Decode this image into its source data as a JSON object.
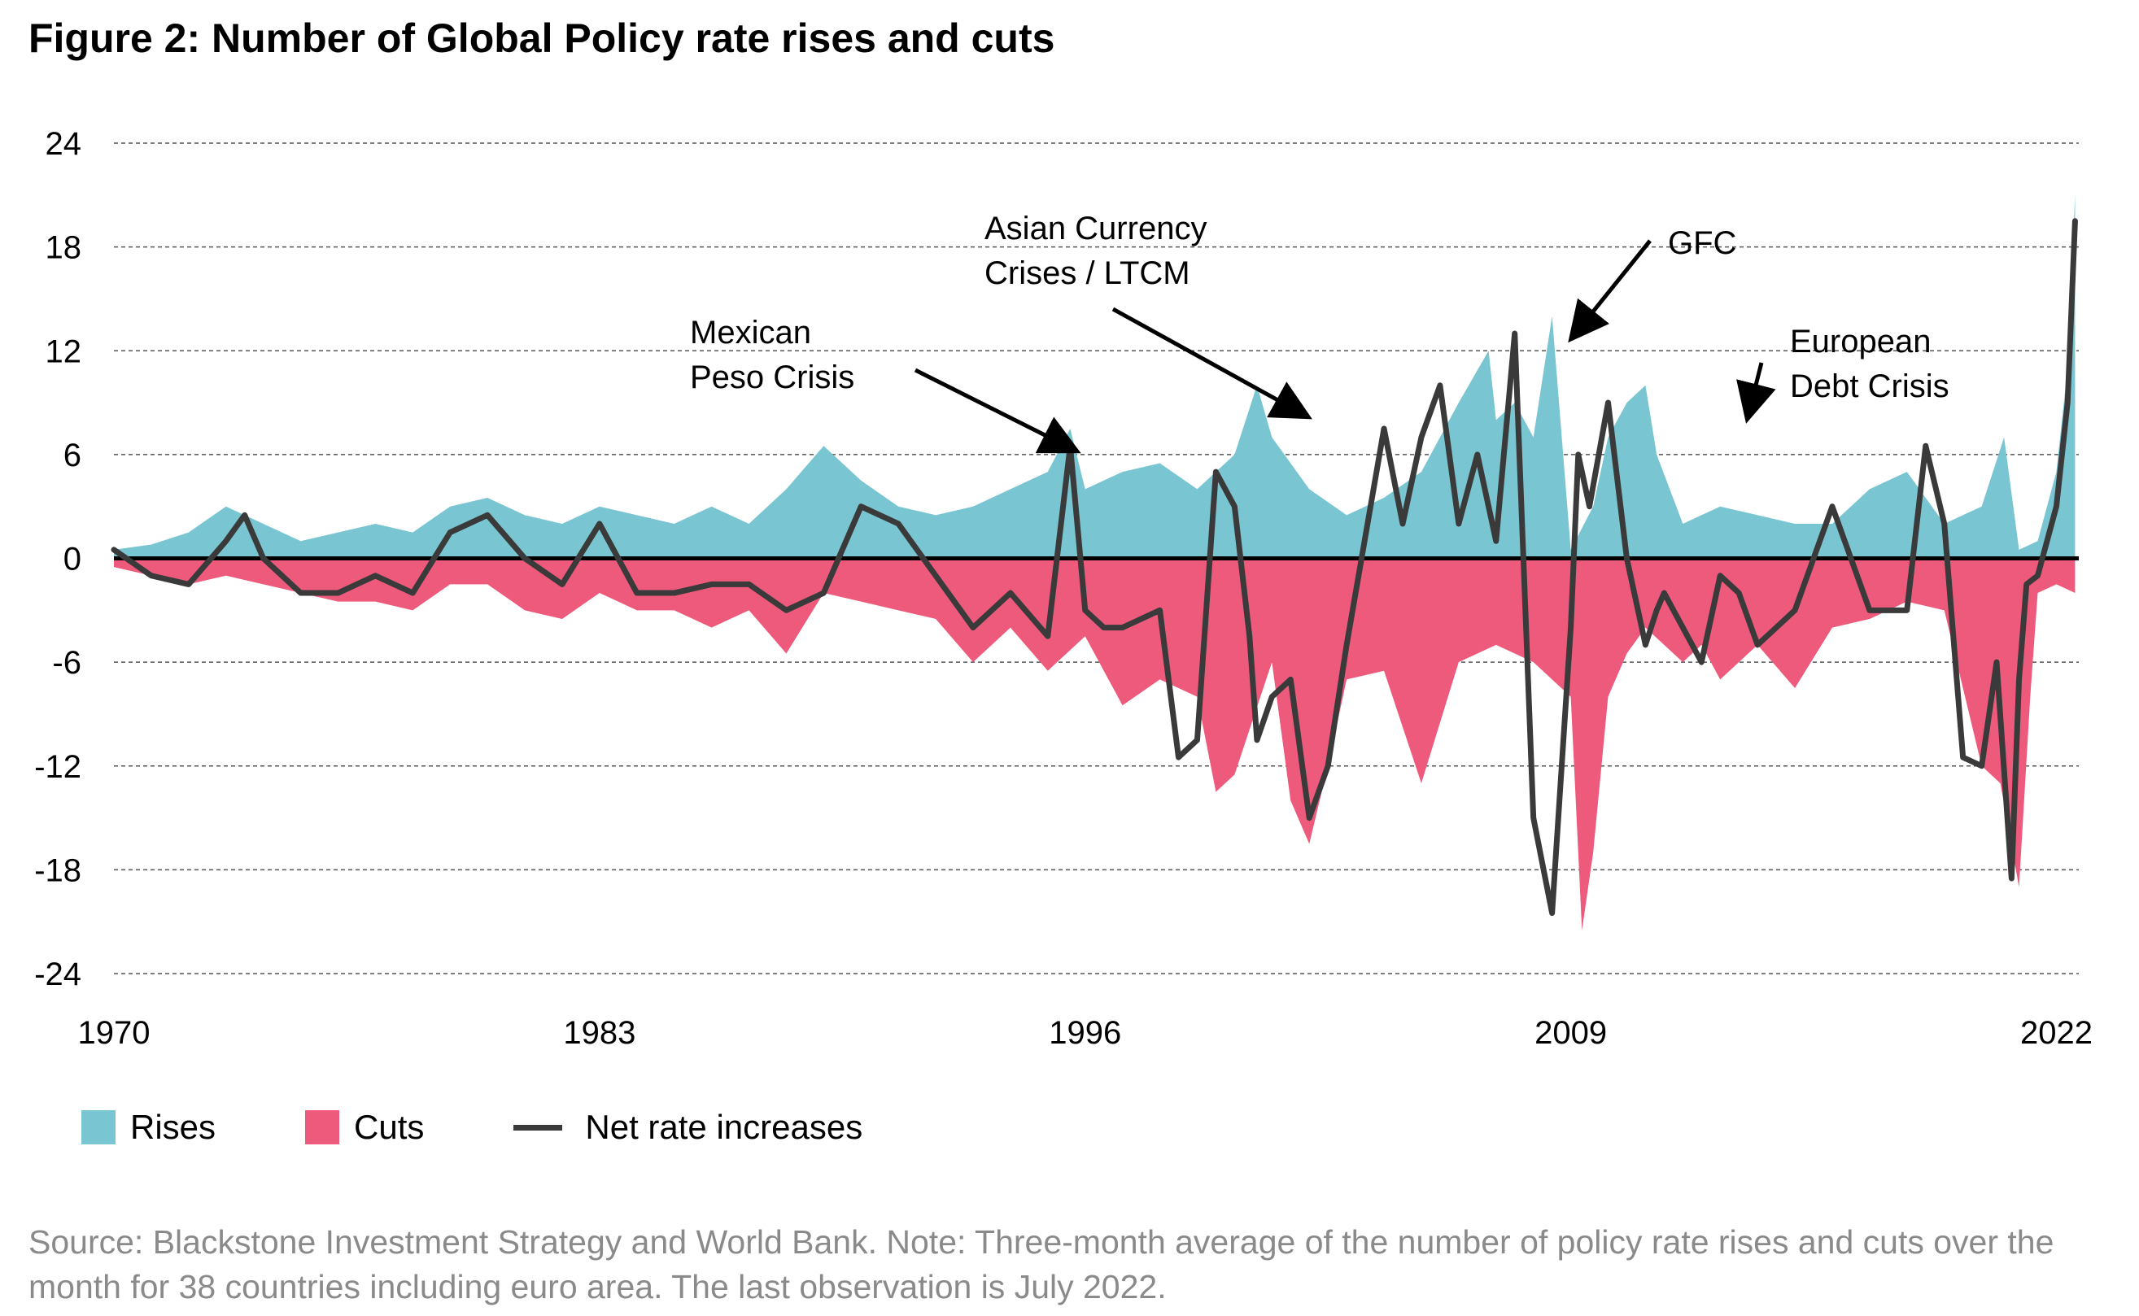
{
  "title": "Figure 2: Number of Global Policy rate rises and cuts",
  "colors": {
    "rises": "#79C5D1",
    "cuts": "#EE5A7C",
    "net": "#3a3a3a"
  },
  "legend": [
    {
      "label": "Rises",
      "kind": "area",
      "color": "#79C5D1"
    },
    {
      "label": "Cuts",
      "kind": "area",
      "color": "#EE5A7C"
    },
    {
      "label": "Net rate increases",
      "kind": "line",
      "color": "#3a3a3a"
    }
  ],
  "source": "Source: Blackstone Investment Strategy and World Bank. Note: Three-month average of the number of policy rate rises and cuts over the month for 38 countries including euro area. The last observation is July 2022.",
  "chart_data": {
    "type": "area",
    "title": "Figure 2: Number of Global Policy rate rises and cuts",
    "xlabel": "",
    "ylabel": "",
    "xlim": [
      1970,
      2022.6
    ],
    "ylim": [
      -24,
      24
    ],
    "x_ticks": [
      1970,
      1983,
      1996,
      2009,
      2022
    ],
    "y_ticks": [
      24,
      18,
      12,
      6,
      0,
      -6,
      -12,
      -18,
      -24
    ],
    "grid": "horizontal dashed",
    "legend_position": "bottom-left",
    "series": [
      {
        "name": "Rises",
        "x": [
          1970,
          1971,
          1972,
          1973,
          1974,
          1975,
          1976,
          1977,
          1978,
          1979,
          1980,
          1981,
          1982,
          1983,
          1984,
          1985,
          1986,
          1987,
          1988,
          1989,
          1990,
          1991,
          1992,
          1993,
          1994,
          1995,
          1995.6,
          1996,
          1997,
          1998,
          1999,
          2000,
          2000.6,
          2001,
          2002,
          2003,
          2004,
          2005,
          2006,
          2006.8,
          2007,
          2007.5,
          2008,
          2008.5,
          2009,
          2009.6,
          2010,
          2010.5,
          2011,
          2011.3,
          2012,
          2013,
          2014,
          2015,
          2016,
          2017,
          2018,
          2019,
          2020,
          2020.6,
          2021,
          2021.5,
          2022,
          2022.3,
          2022.5
        ],
        "values": [
          0.5,
          0.8,
          1.5,
          3.0,
          2.0,
          1.0,
          1.5,
          2.0,
          1.5,
          3.0,
          3.5,
          2.5,
          2.0,
          3.0,
          2.5,
          2.0,
          3.0,
          2.0,
          4.0,
          6.5,
          4.5,
          3.0,
          2.5,
          3.0,
          4.0,
          5.0,
          7.5,
          4.0,
          5.0,
          5.5,
          4.0,
          6.0,
          10.0,
          7.0,
          4.0,
          2.5,
          3.5,
          5.0,
          9.0,
          12.0,
          8.0,
          9.0,
          7.0,
          14.0,
          0.5,
          3.0,
          7.0,
          9.0,
          10.0,
          6.0,
          2.0,
          3.0,
          2.5,
          2.0,
          2.0,
          4.0,
          5.0,
          2.0,
          3.0,
          7.0,
          0.5,
          1.0,
          5.0,
          11.0,
          21.0
        ]
      },
      {
        "name": "Cuts",
        "x": [
          1970,
          1971,
          1972,
          1973,
          1974,
          1975,
          1976,
          1977,
          1978,
          1979,
          1980,
          1981,
          1982,
          1983,
          1984,
          1985,
          1986,
          1987,
          1988,
          1989,
          1990,
          1991,
          1992,
          1993,
          1994,
          1995,
          1996,
          1997,
          1998,
          1999,
          1999.5,
          2000,
          2001,
          2001.5,
          2002,
          2002.5,
          2003,
          2004,
          2005,
          2006,
          2007,
          2008,
          2009,
          2009.3,
          2009.6,
          2010,
          2010.5,
          2011,
          2012,
          2012.5,
          2013,
          2014,
          2015,
          2016,
          2017,
          2018,
          2019,
          2020,
          2020.5,
          2021,
          2021.3,
          2021.5,
          2022,
          2022.5
        ],
        "values": [
          -0.5,
          -1.0,
          -1.5,
          -1.0,
          -1.5,
          -2.0,
          -2.5,
          -2.5,
          -3.0,
          -1.5,
          -1.5,
          -3.0,
          -3.5,
          -2.0,
          -3.0,
          -3.0,
          -4.0,
          -3.0,
          -5.5,
          -2.0,
          -2.5,
          -3.0,
          -3.5,
          -6.0,
          -4.0,
          -6.5,
          -4.5,
          -8.5,
          -7.0,
          -8.0,
          -13.5,
          -12.5,
          -6.0,
          -14.0,
          -16.5,
          -12.0,
          -7.0,
          -6.5,
          -13.0,
          -6.0,
          -5.0,
          -6.0,
          -8.0,
          -21.5,
          -17.0,
          -8.0,
          -5.5,
          -4.0,
          -6.0,
          -5.0,
          -7.0,
          -5.0,
          -7.5,
          -4.0,
          -3.5,
          -2.5,
          -3.0,
          -12.0,
          -13.0,
          -19.0,
          -8.0,
          -2.0,
          -1.5,
          -2.0
        ]
      },
      {
        "name": "Net rate increases",
        "x": [
          1970,
          1971,
          1972,
          1973,
          1973.5,
          1974,
          1975,
          1976,
          1977,
          1978,
          1979,
          1980,
          1981,
          1982,
          1983,
          1984,
          1985,
          1986,
          1987,
          1988,
          1989,
          1990,
          1991,
          1992,
          1993,
          1994,
          1995,
          1995.6,
          1996,
          1996.5,
          1997,
          1998,
          1998.5,
          1999,
          1999.5,
          2000,
          2000.4,
          2000.6,
          2001,
          2001.5,
          2002,
          2002.5,
          2003,
          2004,
          2004.5,
          2005,
          2005.5,
          2006,
          2006.5,
          2007,
          2007.5,
          2008,
          2008.5,
          2009,
          2009.2,
          2009.5,
          2010,
          2010.5,
          2011,
          2011.3,
          2011.5,
          2012,
          2012.5,
          2013,
          2013.5,
          2014,
          2015,
          2016,
          2017,
          2018,
          2018.5,
          2019,
          2019.5,
          2020,
          2020.4,
          2020.8,
          2021,
          2021.2,
          2021.5,
          2022,
          2022.3,
          2022.5
        ],
        "values": [
          0.5,
          -1.0,
          -1.5,
          1.0,
          2.5,
          0.0,
          -2.0,
          -2.0,
          -1.0,
          -2.0,
          1.5,
          2.5,
          0.0,
          -1.5,
          2.0,
          -2.0,
          -2.0,
          -1.5,
          -1.5,
          -3.0,
          -2.0,
          3.0,
          2.0,
          -1.0,
          -4.0,
          -2.0,
          -4.5,
          6.5,
          -3.0,
          -4.0,
          -4.0,
          -3.0,
          -11.5,
          -10.5,
          5.0,
          3.0,
          -4.5,
          -10.5,
          -8.0,
          -7.0,
          -15.0,
          -12.0,
          -5.0,
          7.5,
          2.0,
          7.0,
          10.0,
          2.0,
          6.0,
          1.0,
          13.0,
          -15.0,
          -20.5,
          -4.0,
          6.0,
          3.0,
          9.0,
          0.0,
          -5.0,
          -3.0,
          -2.0,
          -4.0,
          -6.0,
          -1.0,
          -2.0,
          -5.0,
          -3.0,
          3.0,
          -3.0,
          -3.0,
          6.5,
          2.0,
          -11.5,
          -12.0,
          -6.0,
          -18.5,
          -7.0,
          -1.5,
          -1.0,
          3.0,
          9.0,
          19.5
        ]
      }
    ],
    "annotations": [
      {
        "text": [
          "Mexican",
          "Peso Crisis"
        ],
        "x": 1995.5,
        "y": 6.5
      },
      {
        "text": [
          "Asian Currency",
          "Crises / LTCM"
        ],
        "x": 2001.7,
        "y": 8.5
      },
      {
        "text": [
          "GFC"
        ],
        "x": 2009.2,
        "y": 13.2
      },
      {
        "text": [
          "European",
          "Debt Crisis"
        ],
        "x": 2013.8,
        "y": 8.7
      }
    ]
  }
}
